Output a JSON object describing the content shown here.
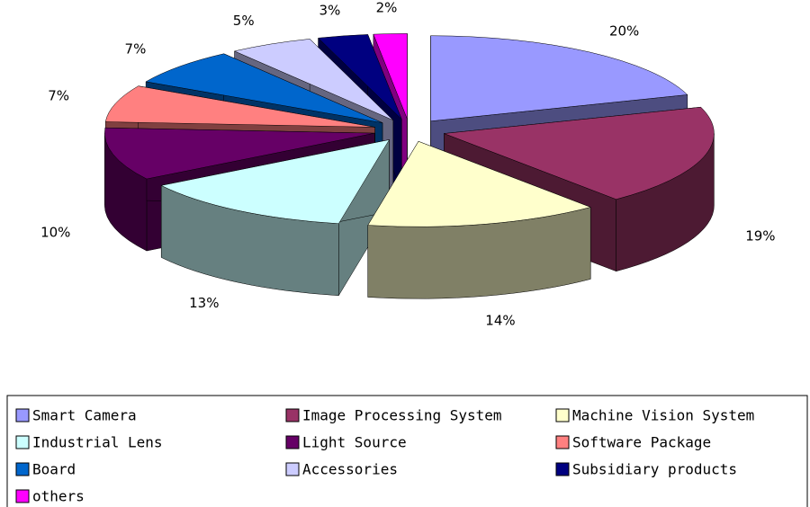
{
  "chart_data": {
    "type": "pie",
    "categories": [
      "Smart Camera",
      "Image Processing System",
      "Machine Vision System",
      "Industrial Lens",
      "Light Source",
      "Software Package",
      "Board",
      "Accessories",
      "Subsidiary products",
      "others"
    ],
    "values": [
      20,
      19,
      14,
      13,
      10,
      7,
      7,
      5,
      3,
      2
    ],
    "value_labels": [
      "20%",
      "19%",
      "14%",
      "13%",
      "10%",
      "7%",
      "7%",
      "5%",
      "3%",
      "2%"
    ],
    "colors": [
      "#9999ff",
      "#993366",
      "#ffffcc",
      "#ccffff",
      "#660066",
      "#ff8080",
      "#0066cc",
      "#ccccff",
      "#000080",
      "#ff00ff"
    ],
    "legend": "bottom"
  }
}
